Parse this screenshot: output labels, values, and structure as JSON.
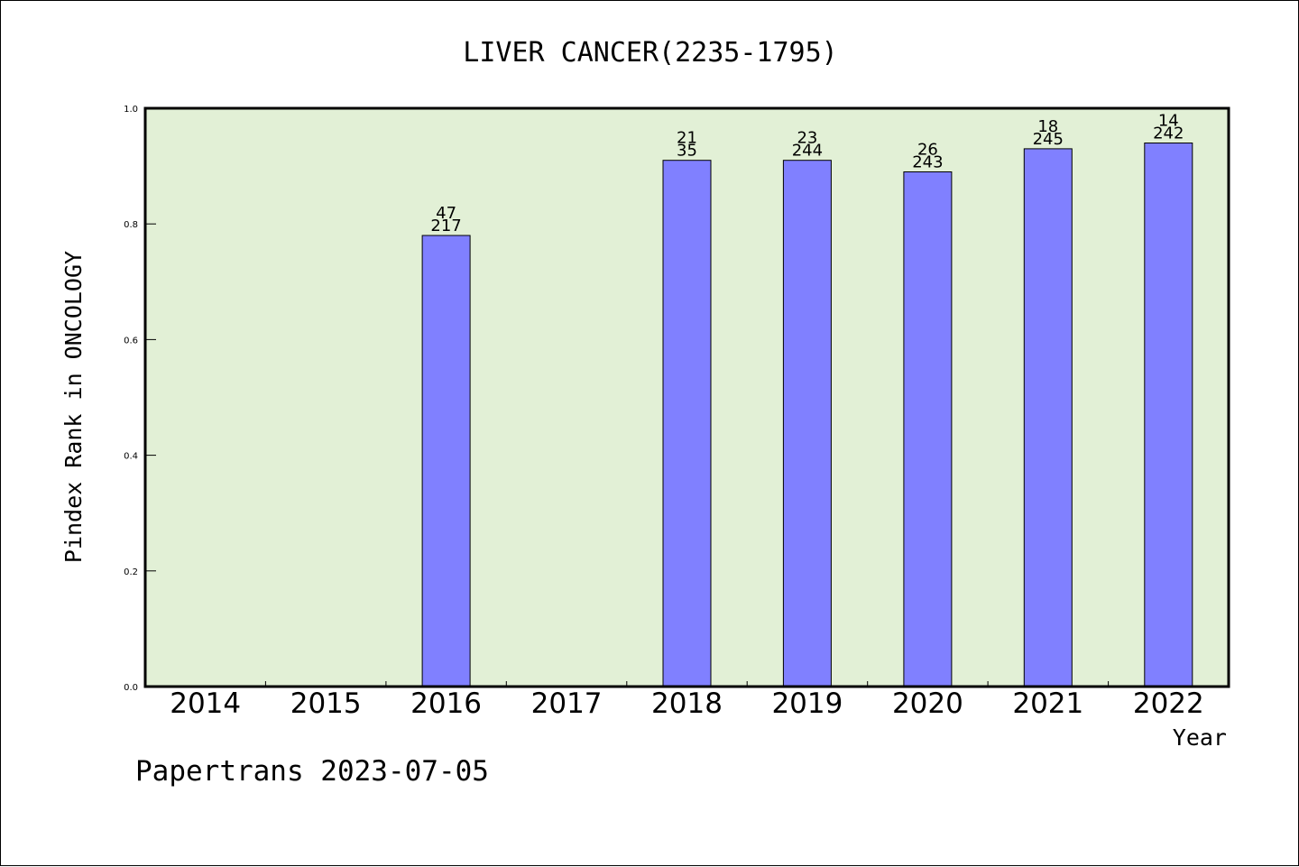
{
  "chart_data": {
    "type": "bar",
    "title": "LIVER CANCER(2235-1795)",
    "xlabel": "Year",
    "ylabel": "Pindex Rank in ONCOLOGY",
    "categories": [
      "2014",
      "2015",
      "2016",
      "2017",
      "2018",
      "2019",
      "2020",
      "2021",
      "2022"
    ],
    "values": [
      null,
      null,
      0.78,
      null,
      0.91,
      0.91,
      0.89,
      0.93,
      0.94
    ],
    "bar_labels": [
      null,
      null,
      {
        "top": "47",
        "bottom": "217"
      },
      null,
      {
        "top": "21",
        "bottom": "35"
      },
      {
        "top": "23",
        "bottom": "244"
      },
      {
        "top": "26",
        "bottom": "243"
      },
      {
        "top": "18",
        "bottom": "245"
      },
      {
        "top": "14",
        "bottom": "242"
      }
    ],
    "ylim": [
      0,
      1.0
    ],
    "yticks": [
      "0.0",
      "0.2",
      "0.4",
      "0.6",
      "0.8",
      "1.0"
    ],
    "grid": false,
    "colors": {
      "bar": "#8080ff",
      "plot_background": "#e2f0d6"
    }
  },
  "footer": "Papertrans 2023-07-05"
}
